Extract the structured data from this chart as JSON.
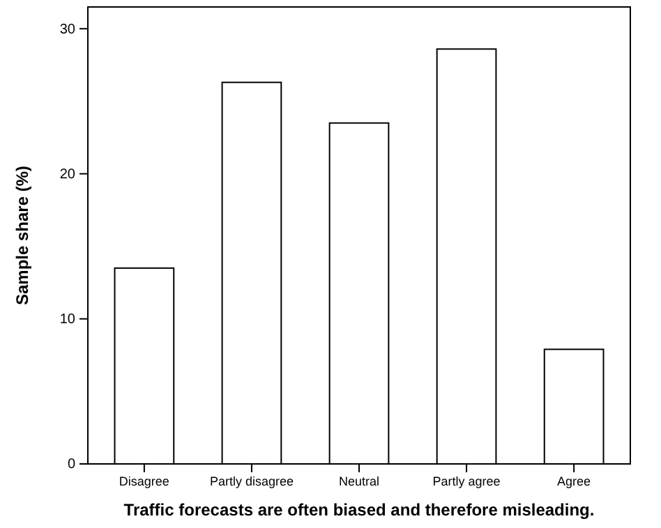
{
  "chart_data": {
    "type": "bar",
    "xlabel": "Traffic forecasts are often biased and therefore misleading.",
    "ylabel": "Sample share (%)",
    "categories": [
      "Disagree",
      "Partly disagree",
      "Neutral",
      "Partly agree",
      "Agree"
    ],
    "values": [
      13.5,
      26.3,
      23.5,
      28.6,
      7.9
    ],
    "color": "#ffffff",
    "ylim": [
      0,
      31.5
    ],
    "yticks": [
      0,
      10,
      20,
      30
    ],
    "grid": false
  }
}
